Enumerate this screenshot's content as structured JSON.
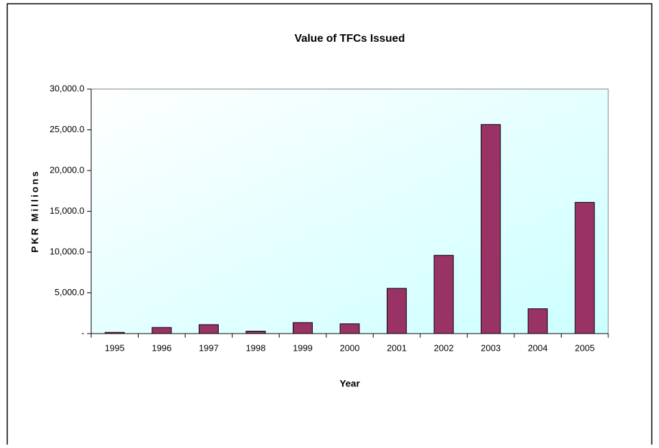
{
  "chart_data": {
    "type": "bar",
    "title": "Value of TFCs Issued",
    "x_label": "Year",
    "y_label": "PKR Millions",
    "categories": [
      "1995",
      "1996",
      "1997",
      "1998",
      "1999",
      "2000",
      "2001",
      "2002",
      "2003",
      "2004",
      "2005"
    ],
    "values": [
      150,
      750,
      1100,
      300,
      1350,
      1200,
      5550,
      9600,
      25650,
      3050,
      16100
    ],
    "color": "#993366",
    "ylim": [
      0,
      30000
    ],
    "yticks": [
      {
        "value": 0,
        "label": "-"
      },
      {
        "value": 5000,
        "label": "5,000.0"
      },
      {
        "value": 10000,
        "label": "10,000.0"
      },
      {
        "value": 15000,
        "label": "15,000.0"
      },
      {
        "value": 20000,
        "label": "20,000.0"
      },
      {
        "value": 25000,
        "label": "25,000.0"
      },
      {
        "value": 30000,
        "label": "30,000.0"
      }
    ],
    "grid": false
  }
}
